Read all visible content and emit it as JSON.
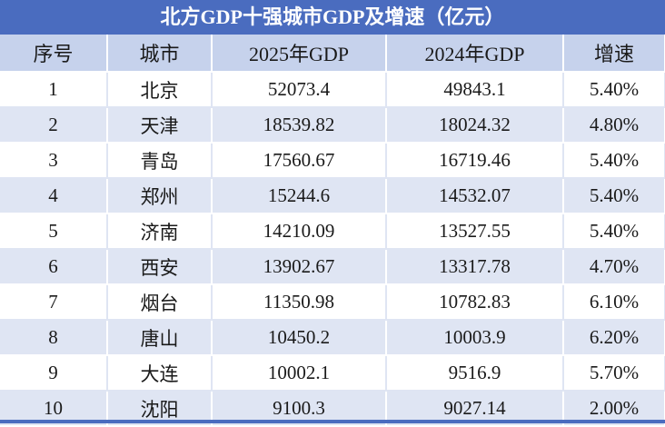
{
  "header": {
    "title": "北方GDP十强城市GDP及增速（亿元）"
  },
  "table": {
    "columns": [
      "序号",
      "城市",
      "2025年GDP",
      "2024年GDP",
      "增速"
    ],
    "rows": [
      [
        "1",
        "北京",
        "52073.4",
        "49843.1",
        "5.40%"
      ],
      [
        "2",
        "天津",
        "18539.82",
        "18024.32",
        "4.80%"
      ],
      [
        "3",
        "青岛",
        "17560.67",
        "16719.46",
        "5.40%"
      ],
      [
        "4",
        "郑州",
        "15244.6",
        "14532.07",
        "5.40%"
      ],
      [
        "5",
        "济南",
        "14210.09",
        "13527.55",
        "5.40%"
      ],
      [
        "6",
        "西安",
        "13902.67",
        "13317.78",
        "4.70%"
      ],
      [
        "7",
        "烟台",
        "11350.98",
        "10782.83",
        "6.10%"
      ],
      [
        "8",
        "唐山",
        "10450.2",
        "10003.9",
        "6.20%"
      ],
      [
        "9",
        "大连",
        "10002.1",
        "9516.9",
        "5.70%"
      ],
      [
        "10",
        "沈阳",
        "9100.3",
        "9027.14",
        "2.00%"
      ]
    ]
  }
}
